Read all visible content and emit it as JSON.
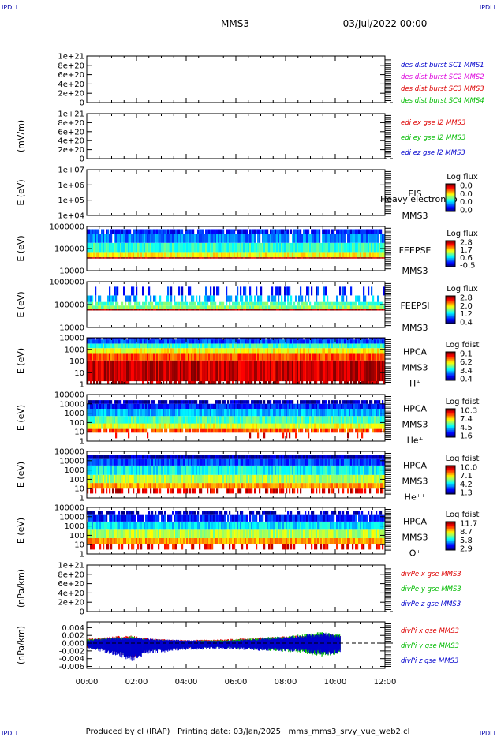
{
  "header": {
    "corner_tl": "IPDLI",
    "corner_tr": "IPDLI",
    "corner_bl": "IPDLI",
    "corner_br": "IPDLI",
    "spacecraft": "MMS3",
    "date": "03/Jul/2022 00:00"
  },
  "footer": {
    "text": "Produced by cl (IRAP)   Printing date: 03/Jan/2025   mms_mms3_srvy_vue_web2.cl"
  },
  "colors": {
    "sc1": "#0000cc",
    "sc2": "#dd00dd",
    "sc3": "#dd0000",
    "sc4": "#00bb00",
    "x_component": "#dd0000",
    "y_component": "#00bb00",
    "z_component": "#0000cc",
    "axis": "#000000"
  },
  "time_axis": {
    "tick_labels": [
      "00:00",
      "02:00",
      "04:00",
      "06:00",
      "08:00",
      "10:00",
      "12:00"
    ],
    "range_hours": [
      0,
      12
    ],
    "data_end_hour": 10.2
  },
  "chart_data": [
    {
      "id": "p1",
      "type": "line",
      "ylabel": "",
      "tick_labels": [
        "1e+21",
        "8e+20",
        "6e+20",
        "4e+20",
        "2e+20",
        "0"
      ],
      "ylim": [
        0,
        1e+21
      ],
      "zero_line": true,
      "legend": [
        {
          "text": "des dist burst SC1 MMS1",
          "color": "#0000cc"
        },
        {
          "text": "des dist burst SC2 MMS2",
          "color": "#dd00dd"
        },
        {
          "text": "des dist burst SC3 MMS3",
          "color": "#dd0000"
        },
        {
          "text": "des dist burst SC4 MMS4",
          "color": "#00bb00"
        }
      ],
      "series": []
    },
    {
      "id": "p2",
      "type": "line",
      "ylabel": "(mV/m)",
      "tick_labels": [
        "1e+21",
        "8e+20",
        "6e+20",
        "4e+20",
        "2e+20",
        "0"
      ],
      "ylim": [
        0,
        1e+21
      ],
      "zero_line": true,
      "legend": [
        {
          "text": "edi ex gse l2 MMS3",
          "color": "#dd0000"
        },
        {
          "text": "edi ey gse l2 MMS3",
          "color": "#00bb00"
        },
        {
          "text": "edi ez gse l2 MMS3",
          "color": "#0000cc"
        }
      ],
      "series": []
    },
    {
      "id": "p3",
      "type": "heatmap",
      "ylabel": "E (eV)",
      "scale": "log",
      "tick_labels": [
        "1e+07",
        "1e+06",
        "1e+05",
        "1e+04"
      ],
      "ylim": [
        10000,
        10000000
      ],
      "instrument": [
        "EIS",
        "MMS3"
      ],
      "overlay_label": "Heavy electron to",
      "colorbar": {
        "title": "Log flux",
        "ticks": [
          "0.0",
          "0.0",
          "0.0",
          "0.0"
        ]
      },
      "bands": []
    },
    {
      "id": "p4",
      "type": "heatmap",
      "ylabel": "E (eV)",
      "scale": "log",
      "tick_labels": [
        "1000000",
        "100000",
        "10000"
      ],
      "ylim": [
        10000,
        1000000
      ],
      "instrument": [
        "FEEPSE",
        "MMS3"
      ],
      "colorbar": {
        "title": "Log flux",
        "ticks": [
          "2.8",
          "1.7",
          "0.6",
          "-0.5"
        ]
      },
      "bands": [
        {
          "lo": 35000,
          "hi": 40000,
          "level": 0.97,
          "fill": 1
        },
        {
          "lo": 40000,
          "hi": 70000,
          "level": 0.62,
          "fill": 1
        },
        {
          "lo": 70000,
          "hi": 180000,
          "level": 0.42,
          "fill": 1
        },
        {
          "lo": 180000,
          "hi": 450000,
          "level": 0.25,
          "fill": 0.97
        },
        {
          "lo": 450000,
          "hi": 750000,
          "level": 0.15,
          "fill": 0.9
        }
      ]
    },
    {
      "id": "p5",
      "type": "heatmap",
      "ylabel": "E (eV)",
      "scale": "log",
      "tick_labels": [
        "1000000",
        "100000",
        "10000"
      ],
      "ylim": [
        10000,
        1000000
      ],
      "instrument": [
        "FEEPSI",
        "MMS3"
      ],
      "colorbar": {
        "title": "Log flux",
        "ticks": [
          "2.8",
          "2.0",
          "1.2",
          "0.4"
        ]
      },
      "bands": [
        {
          "lo": 55000,
          "hi": 65000,
          "level": 0.98,
          "fill": 1
        },
        {
          "lo": 65000,
          "hi": 90000,
          "level": 0.5,
          "fill": 1
        },
        {
          "lo": 90000,
          "hi": 130000,
          "level": 0.45,
          "fill": 0.85
        },
        {
          "lo": 130000,
          "hi": 250000,
          "level": 0.3,
          "fill": 0.45
        },
        {
          "lo": 250000,
          "hi": 600000,
          "level": 0.15,
          "fill": 0.25
        }
      ]
    },
    {
      "id": "p6",
      "type": "heatmap",
      "ylabel": "E (eV)",
      "scale": "log",
      "tick_labels": [
        "10000",
        "1000",
        "100",
        "10",
        "1"
      ],
      "ylim": [
        1,
        30000
      ],
      "instrument": [
        "HPCA",
        "MMS3",
        "H⁺"
      ],
      "colorbar": {
        "title": "Log fdist",
        "ticks": [
          "9.1",
          "6.2",
          "3.4",
          "0.4"
        ]
      },
      "bands": [
        {
          "lo": 1,
          "hi": 2,
          "level": 0.95,
          "fill": 0.6
        },
        {
          "lo": 2,
          "hi": 200,
          "level": 0.93,
          "fill": 1
        },
        {
          "lo": 200,
          "hi": 1000,
          "level": 0.8,
          "fill": 1
        },
        {
          "lo": 1000,
          "hi": 3000,
          "level": 0.62,
          "fill": 1
        },
        {
          "lo": 3000,
          "hi": 8000,
          "level": 0.42,
          "fill": 1
        },
        {
          "lo": 8000,
          "hi": 20000,
          "level": 0.2,
          "fill": 1
        },
        {
          "lo": 20000,
          "hi": 30000,
          "level": 0.08,
          "fill": 0.9
        }
      ]
    },
    {
      "id": "p7",
      "type": "heatmap",
      "ylabel": "E (eV)",
      "scale": "log",
      "tick_labels": [
        "100000",
        "10000",
        "1000",
        "100",
        "10",
        "1"
      ],
      "ylim": [
        1,
        100000
      ],
      "instrument": [
        "HPCA",
        "MMS3",
        "He⁺"
      ],
      "colorbar": {
        "title": "Log fdist",
        "ticks": [
          "10.3",
          "7.4",
          "4.5",
          "1.6"
        ]
      },
      "bands": [
        {
          "lo": 2,
          "hi": 8,
          "level": 0.9,
          "fill": 0.1
        },
        {
          "lo": 8,
          "hi": 20,
          "level": 0.8,
          "fill": 0.9
        },
        {
          "lo": 20,
          "hi": 80,
          "level": 0.6,
          "fill": 1
        },
        {
          "lo": 80,
          "hi": 500,
          "level": 0.45,
          "fill": 1
        },
        {
          "lo": 500,
          "hi": 3000,
          "level": 0.3,
          "fill": 1
        },
        {
          "lo": 3000,
          "hi": 10000,
          "level": 0.15,
          "fill": 1
        },
        {
          "lo": 10000,
          "hi": 25000,
          "level": 0.05,
          "fill": 0.85
        }
      ]
    },
    {
      "id": "p8",
      "type": "heatmap",
      "ylabel": "E (eV)",
      "scale": "log",
      "tick_labels": [
        "100000",
        "10000",
        "1000",
        "100",
        "10",
        "1"
      ],
      "ylim": [
        1,
        100000
      ],
      "instrument": [
        "HPCA",
        "MMS3",
        "He⁺⁺"
      ],
      "colorbar": {
        "title": "Log fdist",
        "ticks": [
          "10.0",
          "7.1",
          "4.2",
          "1.3"
        ]
      },
      "bands": [
        {
          "lo": 3,
          "hi": 10,
          "level": 0.9,
          "fill": 0.55
        },
        {
          "lo": 10,
          "hi": 40,
          "level": 0.72,
          "fill": 1
        },
        {
          "lo": 40,
          "hi": 300,
          "level": 0.55,
          "fill": 1
        },
        {
          "lo": 300,
          "hi": 3000,
          "level": 0.38,
          "fill": 1
        },
        {
          "lo": 3000,
          "hi": 15000,
          "level": 0.2,
          "fill": 1
        },
        {
          "lo": 15000,
          "hi": 40000,
          "level": 0.05,
          "fill": 1
        }
      ]
    },
    {
      "id": "p9",
      "type": "heatmap",
      "ylabel": "E (eV)",
      "scale": "log",
      "tick_labels": [
        "100000",
        "10000",
        "1000",
        "100",
        "10",
        "1"
      ],
      "ylim": [
        1,
        100000
      ],
      "instrument": [
        "HPCA",
        "MMS3",
        "O⁺"
      ],
      "colorbar": {
        "title": "Log fdist",
        "ticks": [
          "11.7",
          "8.7",
          "5.8",
          "2.9"
        ]
      },
      "bands": [
        {
          "lo": 3,
          "hi": 12,
          "level": 0.88,
          "fill": 0.5
        },
        {
          "lo": 12,
          "hi": 50,
          "level": 0.72,
          "fill": 1
        },
        {
          "lo": 50,
          "hi": 400,
          "level": 0.55,
          "fill": 1
        },
        {
          "lo": 400,
          "hi": 3000,
          "level": 0.35,
          "fill": 1
        },
        {
          "lo": 3000,
          "hi": 15000,
          "level": 0.15,
          "fill": 0.9
        },
        {
          "lo": 15000,
          "hi": 40000,
          "level": 0.05,
          "fill": 0.55
        }
      ]
    },
    {
      "id": "p10",
      "type": "line",
      "ylabel": "(nPa/km)",
      "tick_labels": [
        "1e+21",
        "8e+20",
        "6e+20",
        "4e+20",
        "2e+20",
        "0"
      ],
      "ylim": [
        0,
        1e+21
      ],
      "zero_line": true,
      "legend": [
        {
          "text": "divPe x gse MMS3",
          "color": "#dd0000"
        },
        {
          "text": "divPe y gse MMS3",
          "color": "#00bb00"
        },
        {
          "text": "divPe z gse MMS3",
          "color": "#0000cc"
        }
      ],
      "series": []
    },
    {
      "id": "p11",
      "type": "line",
      "ylabel": "(nPa/km)",
      "tick_labels": [
        "0.004",
        "0.002",
        "0.000",
        "-0.002",
        "-0.004",
        "-0.006"
      ],
      "ylim": [
        -0.0065,
        0.0055
      ],
      "zero_line": true,
      "legend": [
        {
          "text": "divPi x gse MMS3",
          "color": "#dd0000"
        },
        {
          "text": "divPi y gse MMS3",
          "color": "#00bb00"
        },
        {
          "text": "divPi z gse MMS3",
          "color": "#0000cc"
        }
      ],
      "series": [
        {
          "color": "#dd0000",
          "envelope": [
            [
              0,
              0.0012,
              -0.0012
            ],
            [
              1,
              0.0018,
              -0.002
            ],
            [
              1.8,
              0.002,
              -0.004
            ],
            [
              2.5,
              0.0012,
              -0.002
            ],
            [
              4,
              0.0008,
              -0.0015
            ],
            [
              5.5,
              0.001,
              -0.0008
            ],
            [
              7,
              0.0015,
              -0.0012
            ],
            [
              8.5,
              0.002,
              -0.0018
            ],
            [
              9.5,
              0.0025,
              -0.0025
            ],
            [
              10.2,
              0.002,
              -0.002
            ]
          ]
        },
        {
          "color": "#00bb00",
          "envelope": [
            [
              0,
              0.001,
              -0.0012
            ],
            [
              1,
              0.0015,
              -0.002
            ],
            [
              1.8,
              0.0018,
              -0.0038
            ],
            [
              2.5,
              0.001,
              -0.002
            ],
            [
              4,
              0.0006,
              -0.0012
            ],
            [
              5.5,
              0.0008,
              -0.0012
            ],
            [
              7,
              0.0014,
              -0.0018
            ],
            [
              8.5,
              0.0022,
              -0.0025
            ],
            [
              9.5,
              0.003,
              -0.0035
            ],
            [
              10.2,
              0.0022,
              -0.003
            ]
          ]
        },
        {
          "color": "#0000cc",
          "envelope": [
            [
              0,
              0.0008,
              -0.0012
            ],
            [
              1,
              0.0015,
              -0.003
            ],
            [
              1.8,
              0.0015,
              -0.0048
            ],
            [
              2.5,
              0.0012,
              -0.0028
            ],
            [
              4,
              0.0008,
              -0.0018
            ],
            [
              5.5,
              0.0006,
              -0.0015
            ],
            [
              7,
              0.0012,
              -0.002
            ],
            [
              8.5,
              0.002,
              -0.0022
            ],
            [
              9.5,
              0.0028,
              -0.0032
            ],
            [
              10.2,
              0.002,
              -0.0028
            ]
          ]
        }
      ]
    }
  ]
}
